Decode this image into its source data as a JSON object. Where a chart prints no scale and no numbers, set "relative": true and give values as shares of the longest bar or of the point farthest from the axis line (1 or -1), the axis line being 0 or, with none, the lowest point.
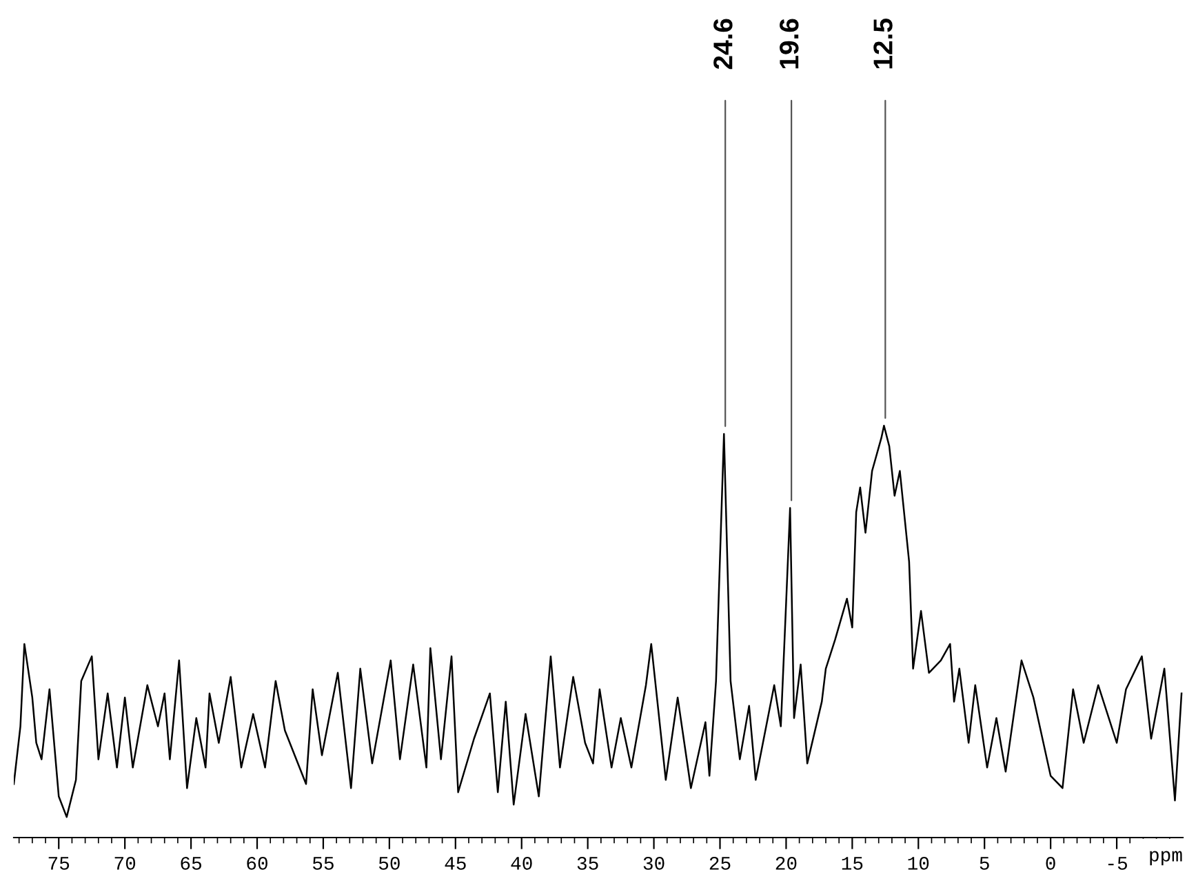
{
  "chart_data": {
    "type": "line",
    "relative": true,
    "xlabel": "ppm",
    "xlim": [
      78.4,
      -10
    ],
    "xticks": [
      75,
      70,
      65,
      60,
      55,
      50,
      45,
      40,
      35,
      30,
      25,
      20,
      15,
      10,
      5,
      0,
      -5,
      {
        "value": 78,
        "label": null
      },
      {
        "value": 77,
        "label": null
      },
      {
        "value": 76,
        "label": null
      },
      {
        "value": 74,
        "label": null
      },
      {
        "value": 73,
        "label": null
      },
      {
        "value": 72,
        "label": null
      },
      {
        "value": 71,
        "label": null
      },
      {
        "value": 69,
        "label": null
      },
      {
        "value": 68,
        "label": null
      },
      {
        "value": 67,
        "label": null
      },
      {
        "value": 66,
        "label": null
      },
      {
        "value": 64,
        "label": null
      },
      {
        "value": 63,
        "label": null
      },
      {
        "value": 62,
        "label": null
      },
      {
        "value": 61,
        "label": null
      },
      {
        "value": 59,
        "label": null
      },
      {
        "value": 58,
        "label": null
      },
      {
        "value": 57,
        "label": null
      },
      {
        "value": 56,
        "label": null
      },
      {
        "value": 54,
        "label": null
      },
      {
        "value": 53,
        "label": null
      },
      {
        "value": 52,
        "label": null
      },
      {
        "value": 51,
        "label": null
      },
      {
        "value": 49,
        "label": null
      },
      {
        "value": 48,
        "label": null
      },
      {
        "value": 47,
        "label": null
      },
      {
        "value": 46,
        "label": null
      },
      {
        "value": 44,
        "label": null
      },
      {
        "value": 43,
        "label": null
      },
      {
        "value": 42,
        "label": null
      },
      {
        "value": 41,
        "label": null
      },
      {
        "value": 39,
        "label": null
      },
      {
        "value": 38,
        "label": null
      },
      {
        "value": 37,
        "label": null
      },
      {
        "value": 36,
        "label": null
      },
      {
        "value": 34,
        "label": null
      },
      {
        "value": 33,
        "label": null
      },
      {
        "value": 32,
        "label": null
      },
      {
        "value": 31,
        "label": null
      },
      {
        "value": 29,
        "label": null
      },
      {
        "value": 28,
        "label": null
      },
      {
        "value": 27,
        "label": null
      },
      {
        "value": 26,
        "label": null
      },
      {
        "value": 24,
        "label": null
      },
      {
        "value": 23,
        "label": null
      },
      {
        "value": 22,
        "label": null
      },
      {
        "value": 21,
        "label": null
      },
      {
        "value": 19,
        "label": null
      },
      {
        "value": 18,
        "label": null
      },
      {
        "value": 17,
        "label": null
      },
      {
        "value": 16,
        "label": null
      },
      {
        "value": 14,
        "label": null
      },
      {
        "value": 13,
        "label": null
      },
      {
        "value": 12,
        "label": null
      },
      {
        "value": 11,
        "label": null
      },
      {
        "value": 9,
        "label": null
      },
      {
        "value": 8,
        "label": null
      },
      {
        "value": 7,
        "label": null
      },
      {
        "value": 6,
        "label": null
      },
      {
        "value": 4,
        "label": null
      },
      {
        "value": 3,
        "label": null
      },
      {
        "value": 2,
        "label": null
      },
      {
        "value": 1,
        "label": null
      },
      {
        "value": -1,
        "label": null
      },
      {
        "value": -2,
        "label": null
      },
      {
        "value": -3,
        "label": null
      },
      {
        "value": -4,
        "label": null
      },
      {
        "value": -6,
        "label": null
      },
      {
        "value": -7,
        "label": null
      },
      {
        "value": -8,
        "label": null
      },
      {
        "value": -9,
        "label": null
      }
    ],
    "grid": false,
    "marker": "none",
    "line_style": "solid",
    "annotations": [
      {
        "text": "24.6",
        "x": 24.6,
        "y": 0.98
      },
      {
        "text": "19.6",
        "x": 19.6,
        "y": 0.8
      },
      {
        "text": "12.5",
        "x": 12.5,
        "y": 1.0
      }
    ],
    "series": [
      {
        "color": "#000000",
        "x": [
          78.4,
          77.9,
          77.6,
          77.0,
          76.7,
          76.3,
          75.7,
          75.0,
          74.4,
          73.7,
          73.3,
          72.5,
          72.0,
          71.3,
          70.6,
          70.0,
          69.4,
          68.3,
          67.5,
          67.0,
          66.6,
          65.9,
          65.3,
          64.6,
          63.9,
          63.6,
          62.9,
          62.0,
          61.2,
          60.3,
          59.4,
          58.6,
          57.9,
          56.3,
          55.8,
          55.1,
          53.9,
          52.9,
          52.2,
          51.3,
          49.9,
          49.2,
          48.2,
          47.2,
          46.9,
          46.1,
          45.3,
          44.8,
          43.6,
          42.4,
          41.8,
          41.2,
          40.6,
          39.7,
          38.7,
          37.8,
          37.1,
          36.1,
          35.2,
          34.6,
          34.1,
          33.2,
          32.5,
          31.7,
          30.6,
          30.2,
          29.1,
          28.2,
          27.2,
          26.1,
          25.8,
          25.3,
          24.7,
          24.2,
          23.5,
          22.8,
          22.3,
          20.9,
          20.4,
          20.0,
          19.7,
          19.4,
          18.9,
          18.4,
          17.3,
          17.0,
          16.3,
          15.4,
          15.0,
          14.7,
          14.4,
          14.0,
          13.5,
          12.8,
          12.6,
          12.2,
          11.8,
          11.4,
          10.7,
          10.4,
          9.8,
          9.2,
          8.3,
          7.6,
          7.3,
          6.9,
          6.2,
          5.7,
          4.8,
          4.1,
          3.4,
          2.2,
          1.3,
          0.0,
          -0.9,
          -1.7,
          -2.5,
          -3.6,
          -5.0,
          -5.7,
          -6.9,
          -7.6,
          -8.6,
          -9.4,
          -9.9
        ],
        "values": [
          0.13,
          0.27,
          0.47,
          0.34,
          0.23,
          0.19,
          0.36,
          0.1,
          0.05,
          0.14,
          0.38,
          0.44,
          0.19,
          0.35,
          0.17,
          0.34,
          0.17,
          0.37,
          0.27,
          0.35,
          0.19,
          0.43,
          0.12,
          0.29,
          0.17,
          0.35,
          0.23,
          0.39,
          0.17,
          0.3,
          0.17,
          0.38,
          0.26,
          0.13,
          0.36,
          0.2,
          0.4,
          0.12,
          0.41,
          0.18,
          0.43,
          0.19,
          0.42,
          0.17,
          0.46,
          0.19,
          0.44,
          0.11,
          0.24,
          0.35,
          0.11,
          0.33,
          0.08,
          0.3,
          0.1,
          0.44,
          0.17,
          0.39,
          0.23,
          0.18,
          0.36,
          0.17,
          0.29,
          0.17,
          0.37,
          0.47,
          0.14,
          0.34,
          0.12,
          0.28,
          0.15,
          0.38,
          0.98,
          0.38,
          0.19,
          0.32,
          0.14,
          0.37,
          0.27,
          0.57,
          0.8,
          0.29,
          0.42,
          0.18,
          0.33,
          0.41,
          0.48,
          0.58,
          0.51,
          0.79,
          0.85,
          0.74,
          0.89,
          0.97,
          1.0,
          0.95,
          0.83,
          0.89,
          0.67,
          0.41,
          0.55,
          0.4,
          0.43,
          0.47,
          0.33,
          0.41,
          0.23,
          0.37,
          0.17,
          0.29,
          0.16,
          0.43,
          0.34,
          0.15,
          0.12,
          0.36,
          0.23,
          0.37,
          0.23,
          0.36,
          0.44,
          0.24,
          0.41,
          0.09,
          0.35
        ]
      }
    ]
  }
}
